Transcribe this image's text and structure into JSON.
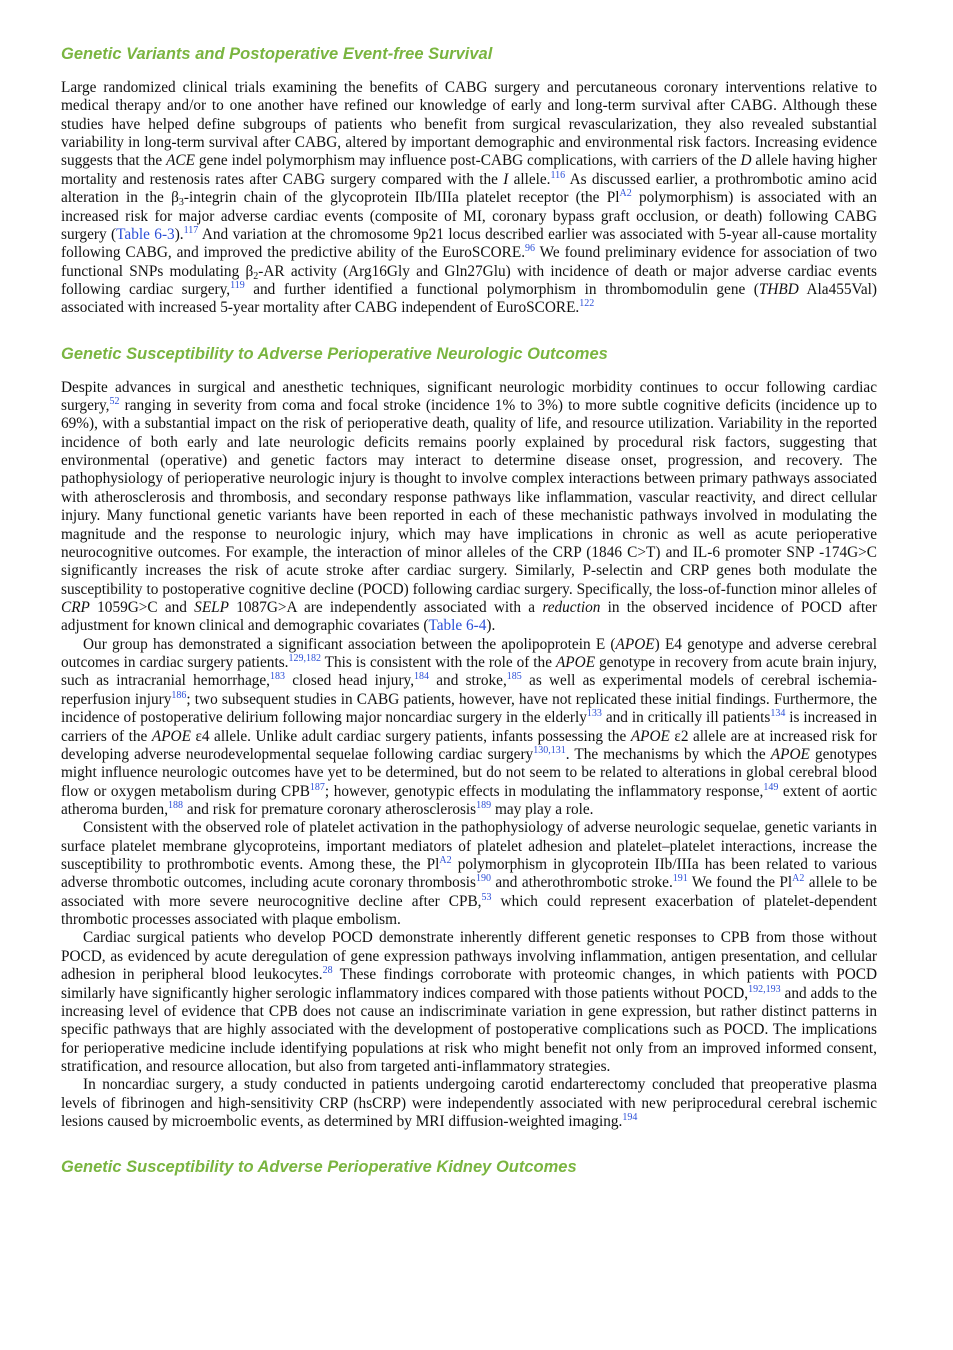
{
  "sections": [
    {
      "heading": "Genetic Variants and Postoperative Event-free Survival",
      "paragraphs": [
        [
          "Large randomized clinical trials examining the benefits of CABG surgery and percutaneous coronary interventions relative to medical therapy and/or to one another have refined our knowledge of early and long-term survival after CABG. Although these studies have helped define subgroups of patients who benefit from surgical revascularization, they also revealed substantial variability in long-term survival after CABG, altered by important demographic and environmental risk factors. Increasing evidence suggests that the ",
          {
            "i": "ACE"
          },
          " gene indel polymorphism may influence post-CABG complications, with carriers of the ",
          {
            "i": "D"
          },
          " allele having higher mortality and restenosis rates after CABG surgery compared with the ",
          {
            "i": "I"
          },
          " allele.",
          {
            "sup": "116"
          },
          " As discussed earlier, a prothrombotic amino acid alteration in the β",
          {
            "sub": "3"
          },
          "-integrin chain of the glycoprotein IIb/IIIa platelet receptor (the Pl",
          {
            "sup": "A2"
          },
          " polymorphism) is associated with an increased risk for major adverse cardiac events (composite of MI, coronary bypass graft occlusion, or death) following CABG surgery (",
          {
            "link": "Table 6-3"
          },
          ").",
          {
            "sup": "117"
          },
          " And variation at the chromosome 9p21 locus described earlier was associated with 5-year all-cause mortality following CABG, and improved the predictive ability of the EuroSCORE.",
          {
            "sup": "96"
          },
          " We found preliminary evidence for association of two functional SNPs modulating β",
          {
            "sub": "2"
          },
          "-AR activity (Arg16Gly and Gln27Glu) with incidence of death or major adverse cardiac events following cardiac surgery,",
          {
            "sup": "119"
          },
          " and further identified a functional polymorphism in thrombomodulin gene (",
          {
            "i": "THBD"
          },
          " Ala455Val) associated with increased 5-year mortality after CABG independent of EuroSCORE.",
          {
            "sup": "122"
          }
        ]
      ]
    },
    {
      "heading": "Genetic Susceptibility to Adverse Perioperative Neurologic Outcomes",
      "paragraphs": [
        [
          "Despite advances in surgical and anesthetic techniques, significant neurologic morbidity continues to occur following cardiac surgery,",
          {
            "sup": "52"
          },
          " ranging in severity from coma and focal stroke (incidence 1% to 3%) to more subtle cognitive deficits (incidence up to 69%), with a substantial impact on the risk of perioperative death, quality of life, and resource utilization. Variability in the reported incidence of both early and late neurologic deficits remains poorly explained by procedural risk factors, suggesting that environmental (operative) and genetic factors may interact to determine disease onset, progression, and recovery. The pathophysiology of perioperative neurologic injury is thought to involve complex interactions between primary pathways associated with atherosclerosis and thrombosis, and secondary response pathways like inflammation, vascular reactivity, and direct cellular injury. Many functional genetic variants have been reported in each of these mechanistic pathways involved in modulating the magnitude and the response to neurologic injury, which may have implications in chronic as well as acute perioperative neurocognitive outcomes. For example, the interaction of minor alleles of the CRP (1846 C>T) and IL-6 promoter SNP -174G>C significantly increases the risk of acute stroke after cardiac surgery. Similarly, P-selectin and CRP genes both modulate the susceptibility to postoperative cognitive decline (POCD) following cardiac surgery. Specifically, the loss-of-function minor alleles of ",
          {
            "i": "CRP"
          },
          " 1059G>C and ",
          {
            "i": "SELP"
          },
          " 1087G>A are independently associated with a ",
          {
            "i": "reduction"
          },
          " in the observed incidence of POCD after adjustment for known clinical and demographic covariates (",
          {
            "link": "Table 6-4"
          },
          ")."
        ],
        [
          "Our group has demonstrated a significant association between the apolipoprotein E (",
          {
            "i": "APOE"
          },
          ") E4 genotype and adverse cerebral outcomes in cardiac surgery patients.",
          {
            "sup": "129,182"
          },
          " This is consistent with the role of the ",
          {
            "i": "APOE"
          },
          " genotype in recovery from acute brain injury, such as intracranial hemorrhage,",
          {
            "sup": "183"
          },
          " closed head injury,",
          {
            "sup": "184"
          },
          " and stroke,",
          {
            "sup": "185"
          },
          " as well as experimental models of cerebral ischemia-reperfusion injury",
          {
            "sup": "186"
          },
          "; two subsequent studies in CABG patients, however, have not replicated these initial findings. Furthermore, the incidence of postoperative delirium following major noncardiac surgery in the elderly",
          {
            "sup": "133"
          },
          " and in critically ill patients",
          {
            "sup": "134"
          },
          " is increased in carriers of the ",
          {
            "i": "APOE"
          },
          " ε4 allele. Unlike adult cardiac surgery patients, infants possessing the ",
          {
            "i": "APOE"
          },
          " ε2 allele are at increased risk for developing adverse neurodevelopmental sequelae following cardiac surgery",
          {
            "sup": "130,131"
          },
          ". The mechanisms by which the ",
          {
            "i": "APOE"
          },
          " genotypes might influence neurologic outcomes have yet to be determined, but do not seem to be related to alterations in global cerebral blood flow or oxygen metabolism during CPB",
          {
            "sup": "187"
          },
          "; however, genotypic effects in modulating the inflammatory response,",
          {
            "sup": "149"
          },
          " extent of aortic atheroma burden,",
          {
            "sup": "188"
          },
          " and risk for premature coronary atherosclerosis",
          {
            "sup": "189"
          },
          " may play a role."
        ],
        [
          "Consistent with the observed role of platelet activation in the pathophysiology of adverse neurologic sequelae, genetic variants in surface platelet membrane glycoproteins, important mediators of platelet adhesion and platelet–platelet interactions, increase the susceptibility to prothrombotic events. Among these, the Pl",
          {
            "sup": "A2"
          },
          " polymorphism in glycoprotein IIb/IIIa has been related to various adverse thrombotic outcomes, including acute coronary thrombosis",
          {
            "sup": "190"
          },
          " and atherothrombotic stroke.",
          {
            "sup": "191"
          },
          " We found the Pl",
          {
            "sup": "A2"
          },
          " allele to be associated with more severe neurocognitive decline after CPB,",
          {
            "sup": "53"
          },
          " which could represent exacerbation of platelet-dependent thrombotic processes associated with plaque embolism."
        ],
        [
          "Cardiac surgical patients who develop POCD demonstrate inherently different genetic responses to CPB from those without POCD, as evidenced by acute deregulation of gene expression pathways involving inflammation, antigen presentation, and cellular adhesion in peripheral blood leukocytes.",
          {
            "sup": "28"
          },
          " These findings corroborate with proteomic changes, in which patients with POCD similarly have significantly higher serologic inflammatory indices compared with those patients without POCD,",
          {
            "sup": "192,193"
          },
          " and adds to the increasing level of evidence that CPB does not cause an indiscriminate variation in gene expression, but rather distinct patterns in specific pathways that are highly associated with the development of postoperative complications such as POCD. The implications for perioperative medicine include identifying populations at risk who might benefit not only from an improved informed consent, stratification, and resource allocation, but also from targeted anti-inflammatory strategies."
        ],
        [
          "In noncardiac surgery, a study conducted in patients undergoing carotid endarterectomy concluded that preoperative plasma levels of fibrinogen and high-sensitivity CRP (hsCRP) were independently associated with new periprocedural cerebral ischemic lesions caused by microembolic events, as determined by MRI diffusion-weighted imaging.",
          {
            "sup": "194"
          }
        ]
      ]
    },
    {
      "heading": "Genetic Susceptibility to Adverse Perioperative Kidney Outcomes"
    }
  ]
}
